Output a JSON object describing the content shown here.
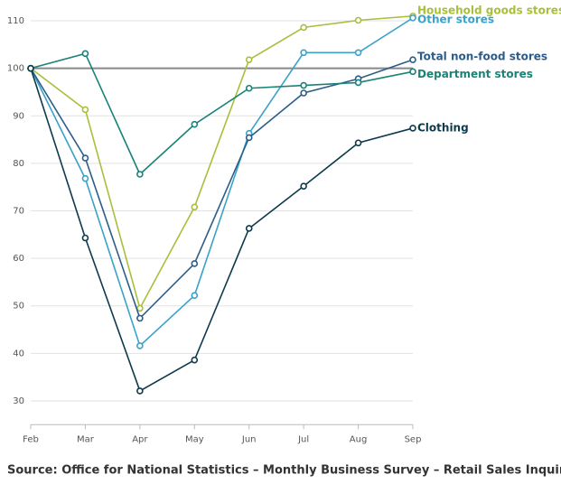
{
  "chart_data": {
    "type": "line",
    "categories": [
      "Feb",
      "Mar",
      "Apr",
      "May",
      "Jun",
      "Jul",
      "Aug",
      "Sep"
    ],
    "series": [
      {
        "name": "Household goods stores",
        "color": "#a8bf3c",
        "values": [
          100,
          91.3,
          49.5,
          70.8,
          101.8,
          108.6,
          110.1,
          111
        ]
      },
      {
        "name": "Other stores",
        "color": "#3aa2c8",
        "values": [
          100,
          76.8,
          41.6,
          52.2,
          86.3,
          103.3,
          103.3,
          110.6
        ]
      },
      {
        "name": "Total non-food stores",
        "color": "#2c5d8a",
        "values": [
          100,
          81.1,
          47.4,
          58.9,
          85.4,
          94.8,
          97.8,
          101.8
        ]
      },
      {
        "name": "Department stores",
        "color": "#1b8278",
        "values": [
          100,
          103.1,
          77.7,
          88.2,
          95.8,
          96.4,
          97.0,
          99.3
        ]
      },
      {
        "name": "Clothing",
        "color": "#0d3a4c",
        "values": [
          100,
          64.3,
          32.1,
          38.6,
          66.3,
          75.2,
          84.3,
          87.4
        ]
      }
    ],
    "reference_line": 100,
    "ylim": [
      25,
      112
    ],
    "yticks": [
      30,
      40,
      50,
      60,
      70,
      80,
      90,
      100,
      110
    ],
    "grid": true,
    "source": "Source: Office for National Statistics – Monthly Business Survey – Retail Sales Inquiry"
  }
}
